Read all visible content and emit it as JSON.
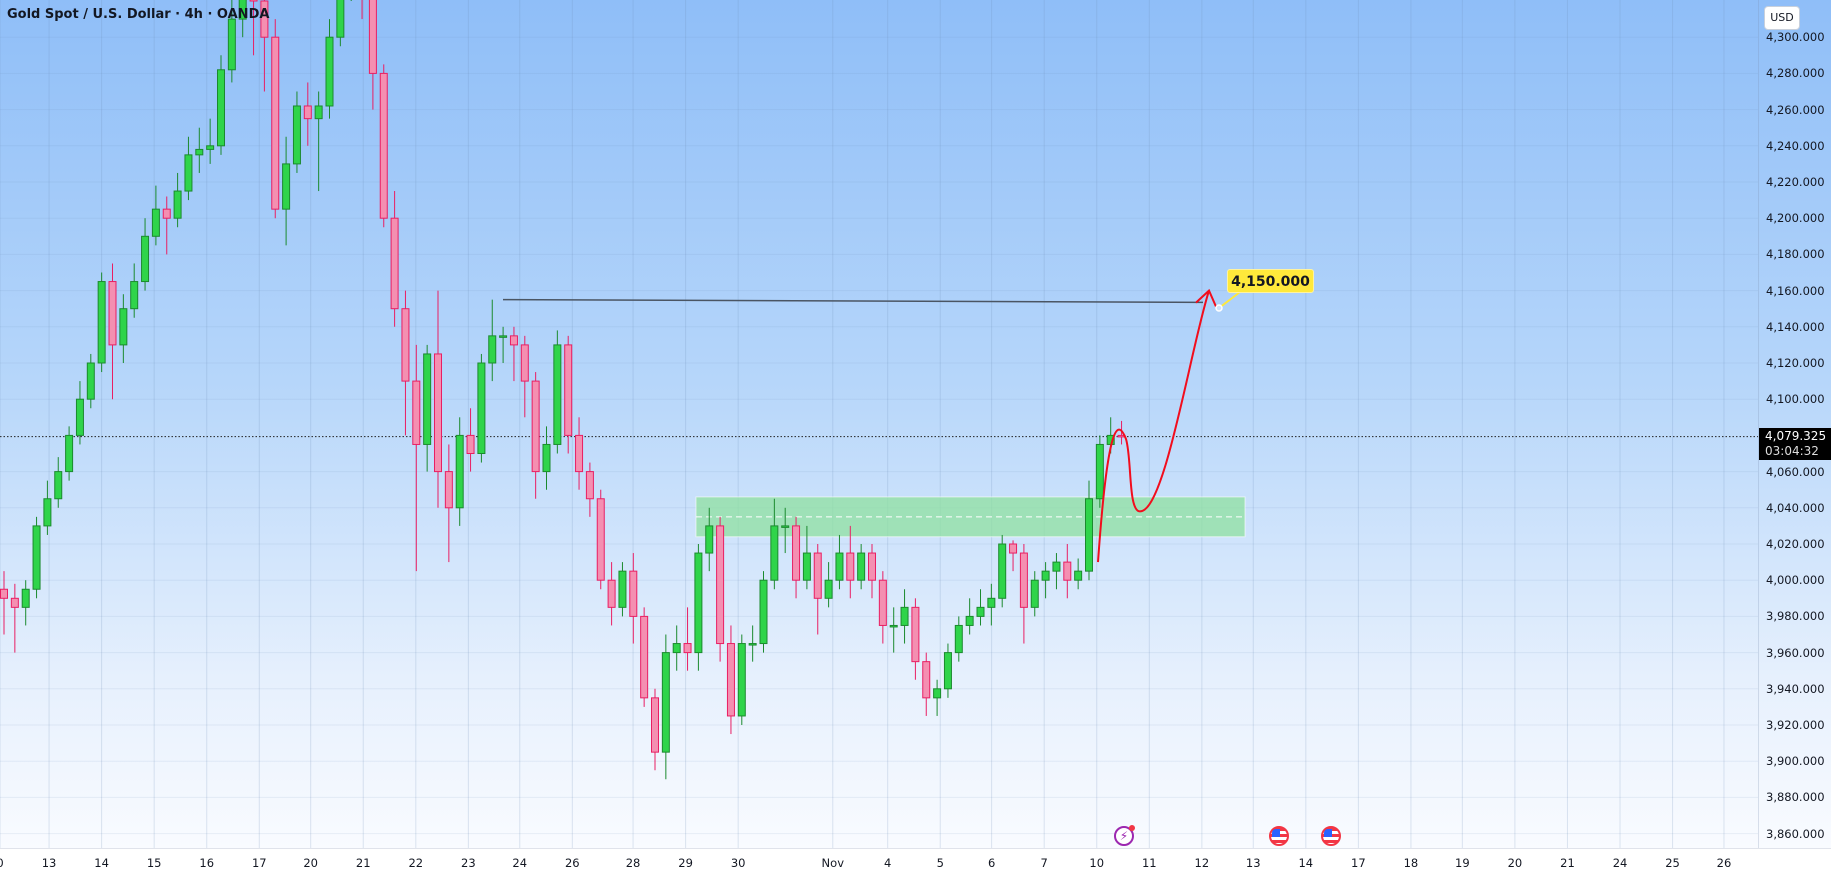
{
  "header": {
    "title": "Gold Spot / U.S. Dollar · 4h · OANDA",
    "currency_button": "USD"
  },
  "price_axis": {
    "labels": [
      "4,300.000",
      "4,280.000",
      "4,260.000",
      "4,240.000",
      "4,220.000",
      "4,200.000",
      "4,180.000",
      "4,160.000",
      "4,140.000",
      "4,120.000",
      "4,100.000",
      "4,060.000",
      "4,040.000",
      "4,020.000",
      "4,000.000",
      "3,980.000",
      "3,960.000",
      "3,940.000",
      "3,920.000",
      "3,900.000",
      "3,880.000",
      "3,860.000"
    ],
    "values": [
      4300,
      4280,
      4260,
      4240,
      4220,
      4200,
      4180,
      4160,
      4140,
      4120,
      4100,
      4060,
      4040,
      4020,
      4000,
      3980,
      3960,
      3940,
      3920,
      3900,
      3880,
      3860
    ]
  },
  "current_price": {
    "value": "4,079.325",
    "countdown": "03:04:32"
  },
  "target_label": "4,150.000",
  "events": [
    {
      "icon": "bolt-icon",
      "date": "10"
    },
    {
      "icon": "us-flag-icon",
      "date": "13"
    },
    {
      "icon": "us-flag-icon",
      "date": "14"
    }
  ],
  "colors": {
    "up": "#2fd44a",
    "up_border": "#1b8a2e",
    "down": "#f48fb1",
    "down_border": "#e91e63",
    "zone": "#8fe0a0",
    "projection": "#f20d1d",
    "level_line": "#4a5563"
  },
  "chart_data": {
    "type": "candlestick",
    "symbol": "Gold Spot / U.S. Dollar",
    "interval": "4h",
    "source": "OANDA",
    "ylim": [
      3850,
      4320
    ],
    "x_tick_labels": [
      "0",
      "13",
      "14",
      "15",
      "16",
      "17",
      "20",
      "21",
      "22",
      "23",
      "24",
      "26",
      "28",
      "29",
      "30",
      "Nov",
      "4",
      "5",
      "6",
      "7",
      "10",
      "11",
      "12",
      "13",
      "14",
      "17",
      "18",
      "19",
      "20",
      "21",
      "24",
      "25",
      "26"
    ],
    "ohlc": [
      [
        3995,
        4005,
        3970,
        3990
      ],
      [
        3990,
        3998,
        3960,
        3985
      ],
      [
        3985,
        4000,
        3975,
        3995
      ],
      [
        3995,
        4035,
        3990,
        4030
      ],
      [
        4030,
        4055,
        4025,
        4045
      ],
      [
        4045,
        4068,
        4040,
        4060
      ],
      [
        4060,
        4085,
        4055,
        4080
      ],
      [
        4080,
        4110,
        4075,
        4100
      ],
      [
        4100,
        4125,
        4095,
        4120
      ],
      [
        4120,
        4170,
        4115,
        4165
      ],
      [
        4165,
        4175,
        4100,
        4130
      ],
      [
        4130,
        4158,
        4120,
        4150
      ],
      [
        4150,
        4175,
        4145,
        4165
      ],
      [
        4165,
        4200,
        4160,
        4190
      ],
      [
        4190,
        4218,
        4185,
        4205
      ],
      [
        4205,
        4212,
        4180,
        4200
      ],
      [
        4200,
        4225,
        4195,
        4215
      ],
      [
        4215,
        4245,
        4210,
        4235
      ],
      [
        4235,
        4250,
        4225,
        4238
      ],
      [
        4238,
        4255,
        4230,
        4240
      ],
      [
        4240,
        4290,
        4235,
        4282
      ],
      [
        4282,
        4325,
        4275,
        4310
      ],
      [
        4310,
        4345,
        4300,
        4330
      ],
      [
        4330,
        4350,
        4290,
        4320
      ],
      [
        4320,
        4330,
        4270,
        4300
      ],
      [
        4300,
        4310,
        4200,
        4205
      ],
      [
        4205,
        4245,
        4185,
        4230
      ],
      [
        4230,
        4270,
        4225,
        4262
      ],
      [
        4262,
        4275,
        4240,
        4255
      ],
      [
        4255,
        4270,
        4215,
        4262
      ],
      [
        4262,
        4310,
        4255,
        4300
      ],
      [
        4300,
        4345,
        4295,
        4335
      ],
      [
        4335,
        4355,
        4320,
        4340
      ],
      [
        4340,
        4350,
        4310,
        4330
      ],
      [
        4330,
        4335,
        4260,
        4280
      ],
      [
        4280,
        4285,
        4195,
        4200
      ],
      [
        4200,
        4215,
        4140,
        4150
      ],
      [
        4150,
        4160,
        4080,
        4110
      ],
      [
        4110,
        4130,
        4005,
        4075
      ],
      [
        4075,
        4130,
        4060,
        4125
      ],
      [
        4125,
        4160,
        4040,
        4060
      ],
      [
        4060,
        4075,
        4010,
        4040
      ],
      [
        4040,
        4090,
        4030,
        4080
      ],
      [
        4080,
        4095,
        4060,
        4070
      ],
      [
        4070,
        4125,
        4065,
        4120
      ],
      [
        4120,
        4155,
        4110,
        4135
      ],
      [
        4135,
        4140,
        4120,
        4135
      ],
      [
        4135,
        4140,
        4110,
        4130
      ],
      [
        4130,
        4135,
        4090,
        4110
      ],
      [
        4110,
        4115,
        4045,
        4060
      ],
      [
        4060,
        4085,
        4050,
        4075
      ],
      [
        4075,
        4138,
        4070,
        4130
      ],
      [
        4130,
        4135,
        4070,
        4080
      ],
      [
        4080,
        4090,
        4050,
        4060
      ],
      [
        4060,
        4065,
        4035,
        4045
      ],
      [
        4045,
        4050,
        3995,
        4000
      ],
      [
        4000,
        4010,
        3975,
        3985
      ],
      [
        3985,
        4010,
        3980,
        4005
      ],
      [
        4005,
        4015,
        3965,
        3980
      ],
      [
        3980,
        3985,
        3930,
        3935
      ],
      [
        3935,
        3940,
        3895,
        3905
      ],
      [
        3905,
        3970,
        3890,
        3960
      ],
      [
        3960,
        3975,
        3950,
        3965
      ],
      [
        3965,
        3985,
        3950,
        3960
      ],
      [
        3960,
        4020,
        3950,
        4015
      ],
      [
        4015,
        4040,
        4005,
        4030
      ],
      [
        4030,
        4035,
        3955,
        3965
      ],
      [
        3965,
        3975,
        3915,
        3925
      ],
      [
        3925,
        3970,
        3920,
        3965
      ],
      [
        3965,
        3975,
        3955,
        3965
      ],
      [
        3965,
        4005,
        3960,
        4000
      ],
      [
        4000,
        4045,
        3995,
        4030
      ],
      [
        4030,
        4040,
        4015,
        4030
      ],
      [
        4030,
        4035,
        3990,
        4000
      ],
      [
        4000,
        4030,
        3995,
        4015
      ],
      [
        4015,
        4020,
        3970,
        3990
      ],
      [
        3990,
        4010,
        3985,
        4000
      ],
      [
        4000,
        4025,
        3995,
        4015
      ],
      [
        4015,
        4030,
        3990,
        4000
      ],
      [
        4000,
        4020,
        3995,
        4015
      ],
      [
        4015,
        4020,
        3990,
        4000
      ],
      [
        4000,
        4005,
        3965,
        3975
      ],
      [
        3975,
        3985,
        3960,
        3975
      ],
      [
        3975,
        3995,
        3965,
        3985
      ],
      [
        3985,
        3990,
        3945,
        3955
      ],
      [
        3955,
        3960,
        3925,
        3935
      ],
      [
        3935,
        3945,
        3925,
        3940
      ],
      [
        3940,
        3965,
        3935,
        3960
      ],
      [
        3960,
        3980,
        3955,
        3975
      ],
      [
        3975,
        3990,
        3970,
        3980
      ],
      [
        3980,
        3995,
        3975,
        3985
      ],
      [
        3985,
        3998,
        3975,
        3990
      ],
      [
        3990,
        4025,
        3985,
        4020
      ],
      [
        4020,
        4022,
        4005,
        4015
      ],
      [
        4015,
        4020,
        3965,
        3985
      ],
      [
        3985,
        4005,
        3980,
        4000
      ],
      [
        4000,
        4010,
        3990,
        4005
      ],
      [
        4005,
        4015,
        3995,
        4010
      ],
      [
        4010,
        4020,
        3990,
        4000
      ],
      [
        4000,
        4012,
        3995,
        4005
      ],
      [
        4005,
        4055,
        4000,
        4045
      ],
      [
        4045,
        4080,
        4040,
        4075
      ],
      [
        4075,
        4090,
        4070,
        4080
      ],
      [
        4080,
        4088,
        4075,
        4079.325
      ]
    ],
    "annotations": {
      "resistance_level": 4155,
      "demand_zone": [
        4024,
        4046
      ],
      "projection_path": [
        4010,
        4078,
        4038,
        4160
      ],
      "target": 4150
    }
  }
}
